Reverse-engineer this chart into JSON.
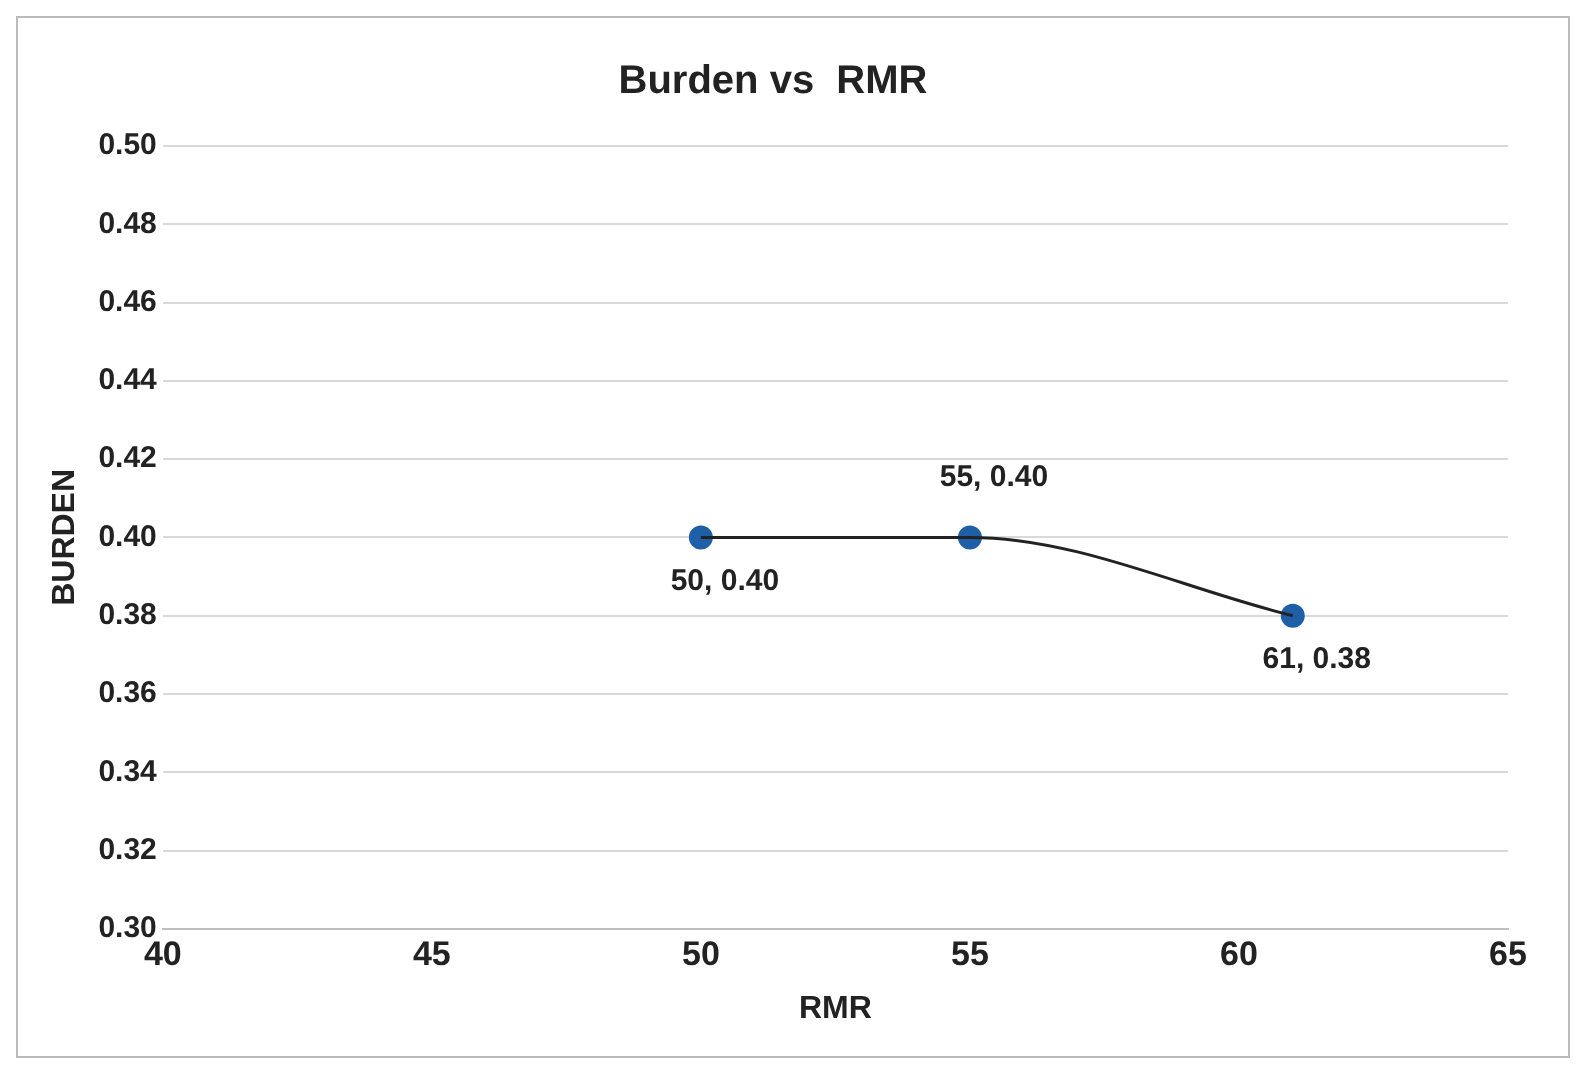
{
  "chart_data": {
    "type": "scatter",
    "title": "Burden vs  RMR",
    "xlabel": "RMR",
    "ylabel": "BURDEN",
    "series": [
      {
        "type": "line",
        "color": "#222222",
        "marker": "none",
        "x": [
          50,
          55,
          61
        ],
        "values": [
          0.4,
          0.4,
          0.38
        ]
      },
      {
        "type": "scatter",
        "color": "#1f5fa8",
        "marker": "circle",
        "x": [
          50,
          55,
          61
        ],
        "values": [
          0.4,
          0.4,
          0.38
        ],
        "value_labels": [
          "50, 0.40",
          "55, 0.40",
          "61, 0.38"
        ]
      }
    ],
    "xlim": [
      40,
      65
    ],
    "xticks": [
      40,
      45,
      50,
      55,
      60,
      65
    ],
    "ylim": [
      0.3,
      0.5
    ],
    "yticks": [
      {
        "value": 0.3,
        "label": "0.30"
      },
      {
        "value": 0.32,
        "label": "0.32"
      },
      {
        "value": 0.34,
        "label": "0.34"
      },
      {
        "value": 0.36,
        "label": "0.36"
      },
      {
        "value": 0.38,
        "label": "0.38"
      },
      {
        "value": 0.4,
        "label": "0.40"
      },
      {
        "value": 0.42,
        "label": "0.42"
      },
      {
        "value": 0.44,
        "label": "0.44"
      },
      {
        "value": 0.46,
        "label": "0.46"
      },
      {
        "value": 0.48,
        "label": "0.48"
      },
      {
        "value": 0.5,
        "label": "0.50"
      }
    ],
    "grid": "y",
    "legend": false
  }
}
